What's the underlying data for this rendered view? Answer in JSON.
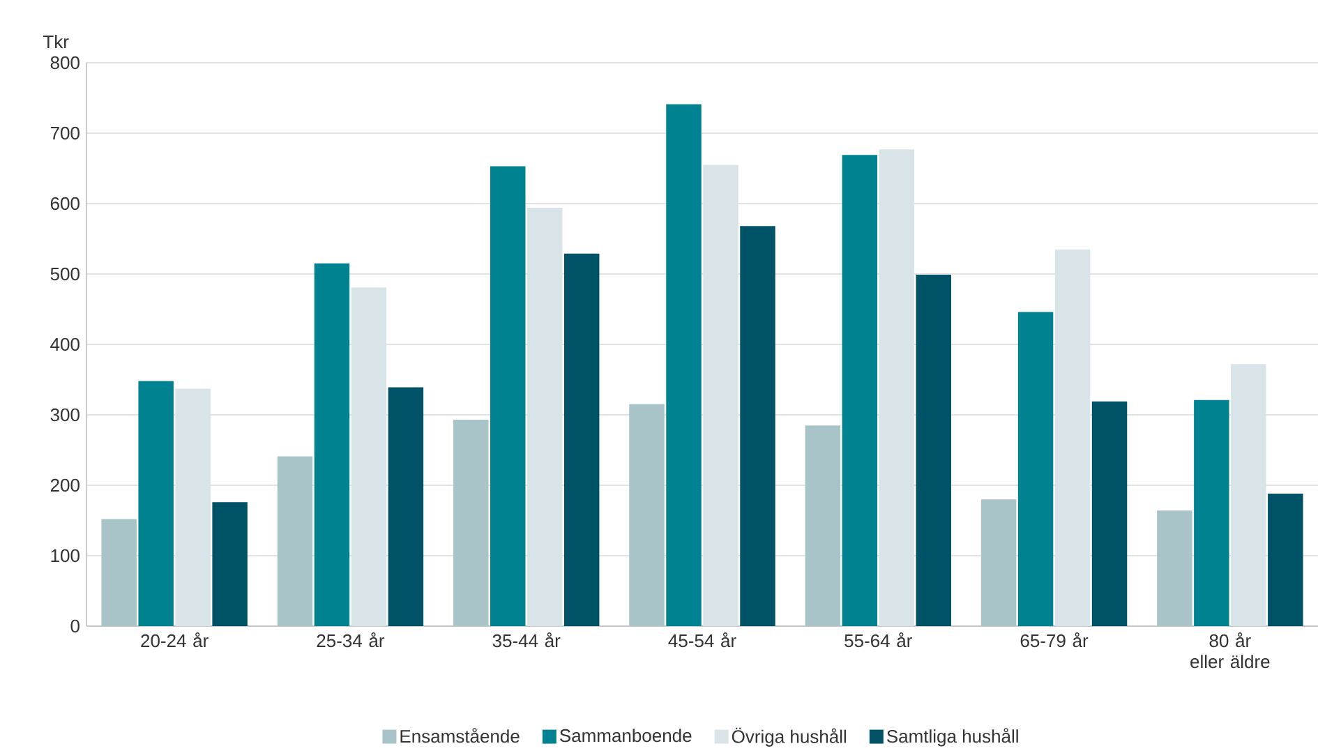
{
  "chart_data": {
    "type": "bar",
    "ylabel": "Tkr",
    "categories": [
      "20-24 år",
      "25-34 år",
      "35-44 år",
      "45-54 år",
      "55-64 år",
      "65-79 år",
      "80 år eller äldre"
    ],
    "series": [
      {
        "name": "Ensamstående",
        "color": "#a8c4c8",
        "values": [
          152,
          241,
          293,
          315,
          285,
          180,
          164
        ]
      },
      {
        "name": "Sammanboende",
        "color": "#008291",
        "values": [
          348,
          515,
          653,
          741,
          669,
          446,
          321
        ]
      },
      {
        "name": "Övriga hushåll",
        "color": "#d9e4e8",
        "values": [
          337,
          481,
          594,
          655,
          677,
          535,
          372
        ]
      },
      {
        "name": "Samtliga hushåll",
        "color": "#005266",
        "values": [
          176,
          339,
          529,
          568,
          499,
          319,
          188
        ]
      }
    ],
    "ylim": [
      0,
      800
    ],
    "yticks": [
      0,
      100,
      200,
      300,
      400,
      500,
      600,
      700,
      800
    ],
    "grid": "y",
    "legend": "bottom"
  }
}
